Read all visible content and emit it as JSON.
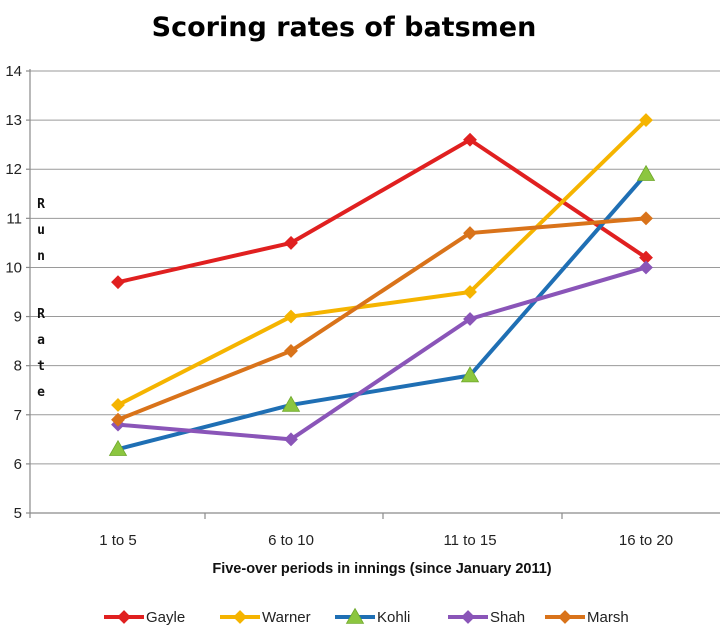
{
  "chart_data": {
    "type": "line",
    "title": "Scoring rates of batsmen",
    "xlabel": "Five-over periods in innings (since January 2011)",
    "ylabel": "Run Rate",
    "categories": [
      "1 to 5",
      "6 to 10",
      "11 to 15",
      "16 to 20"
    ],
    "ylim": [
      5,
      14
    ],
    "yticks": [
      5,
      6,
      7,
      8,
      9,
      10,
      11,
      12,
      13,
      14
    ],
    "grid": true,
    "legend_position": "bottom",
    "series": [
      {
        "name": "Gayle",
        "color": "#e02020",
        "marker": "diamond",
        "values": [
          9.7,
          10.5,
          12.6,
          10.2
        ]
      },
      {
        "name": "Warner",
        "color": "#f5b400",
        "marker": "diamond",
        "values": [
          7.2,
          9.0,
          9.5,
          13.0
        ]
      },
      {
        "name": "Kohli",
        "color": "#1f6fb4",
        "marker": "triangle",
        "values": [
          6.3,
          7.2,
          7.8,
          11.9
        ]
      },
      {
        "name": "Shah",
        "color": "#8a55b8",
        "marker": "diamond",
        "values": [
          6.8,
          6.5,
          8.95,
          10.0
        ]
      },
      {
        "name": "Marsh",
        "color": "#d9731a",
        "marker": "diamond",
        "values": [
          6.9,
          8.3,
          10.7,
          11.0
        ]
      }
    ]
  }
}
